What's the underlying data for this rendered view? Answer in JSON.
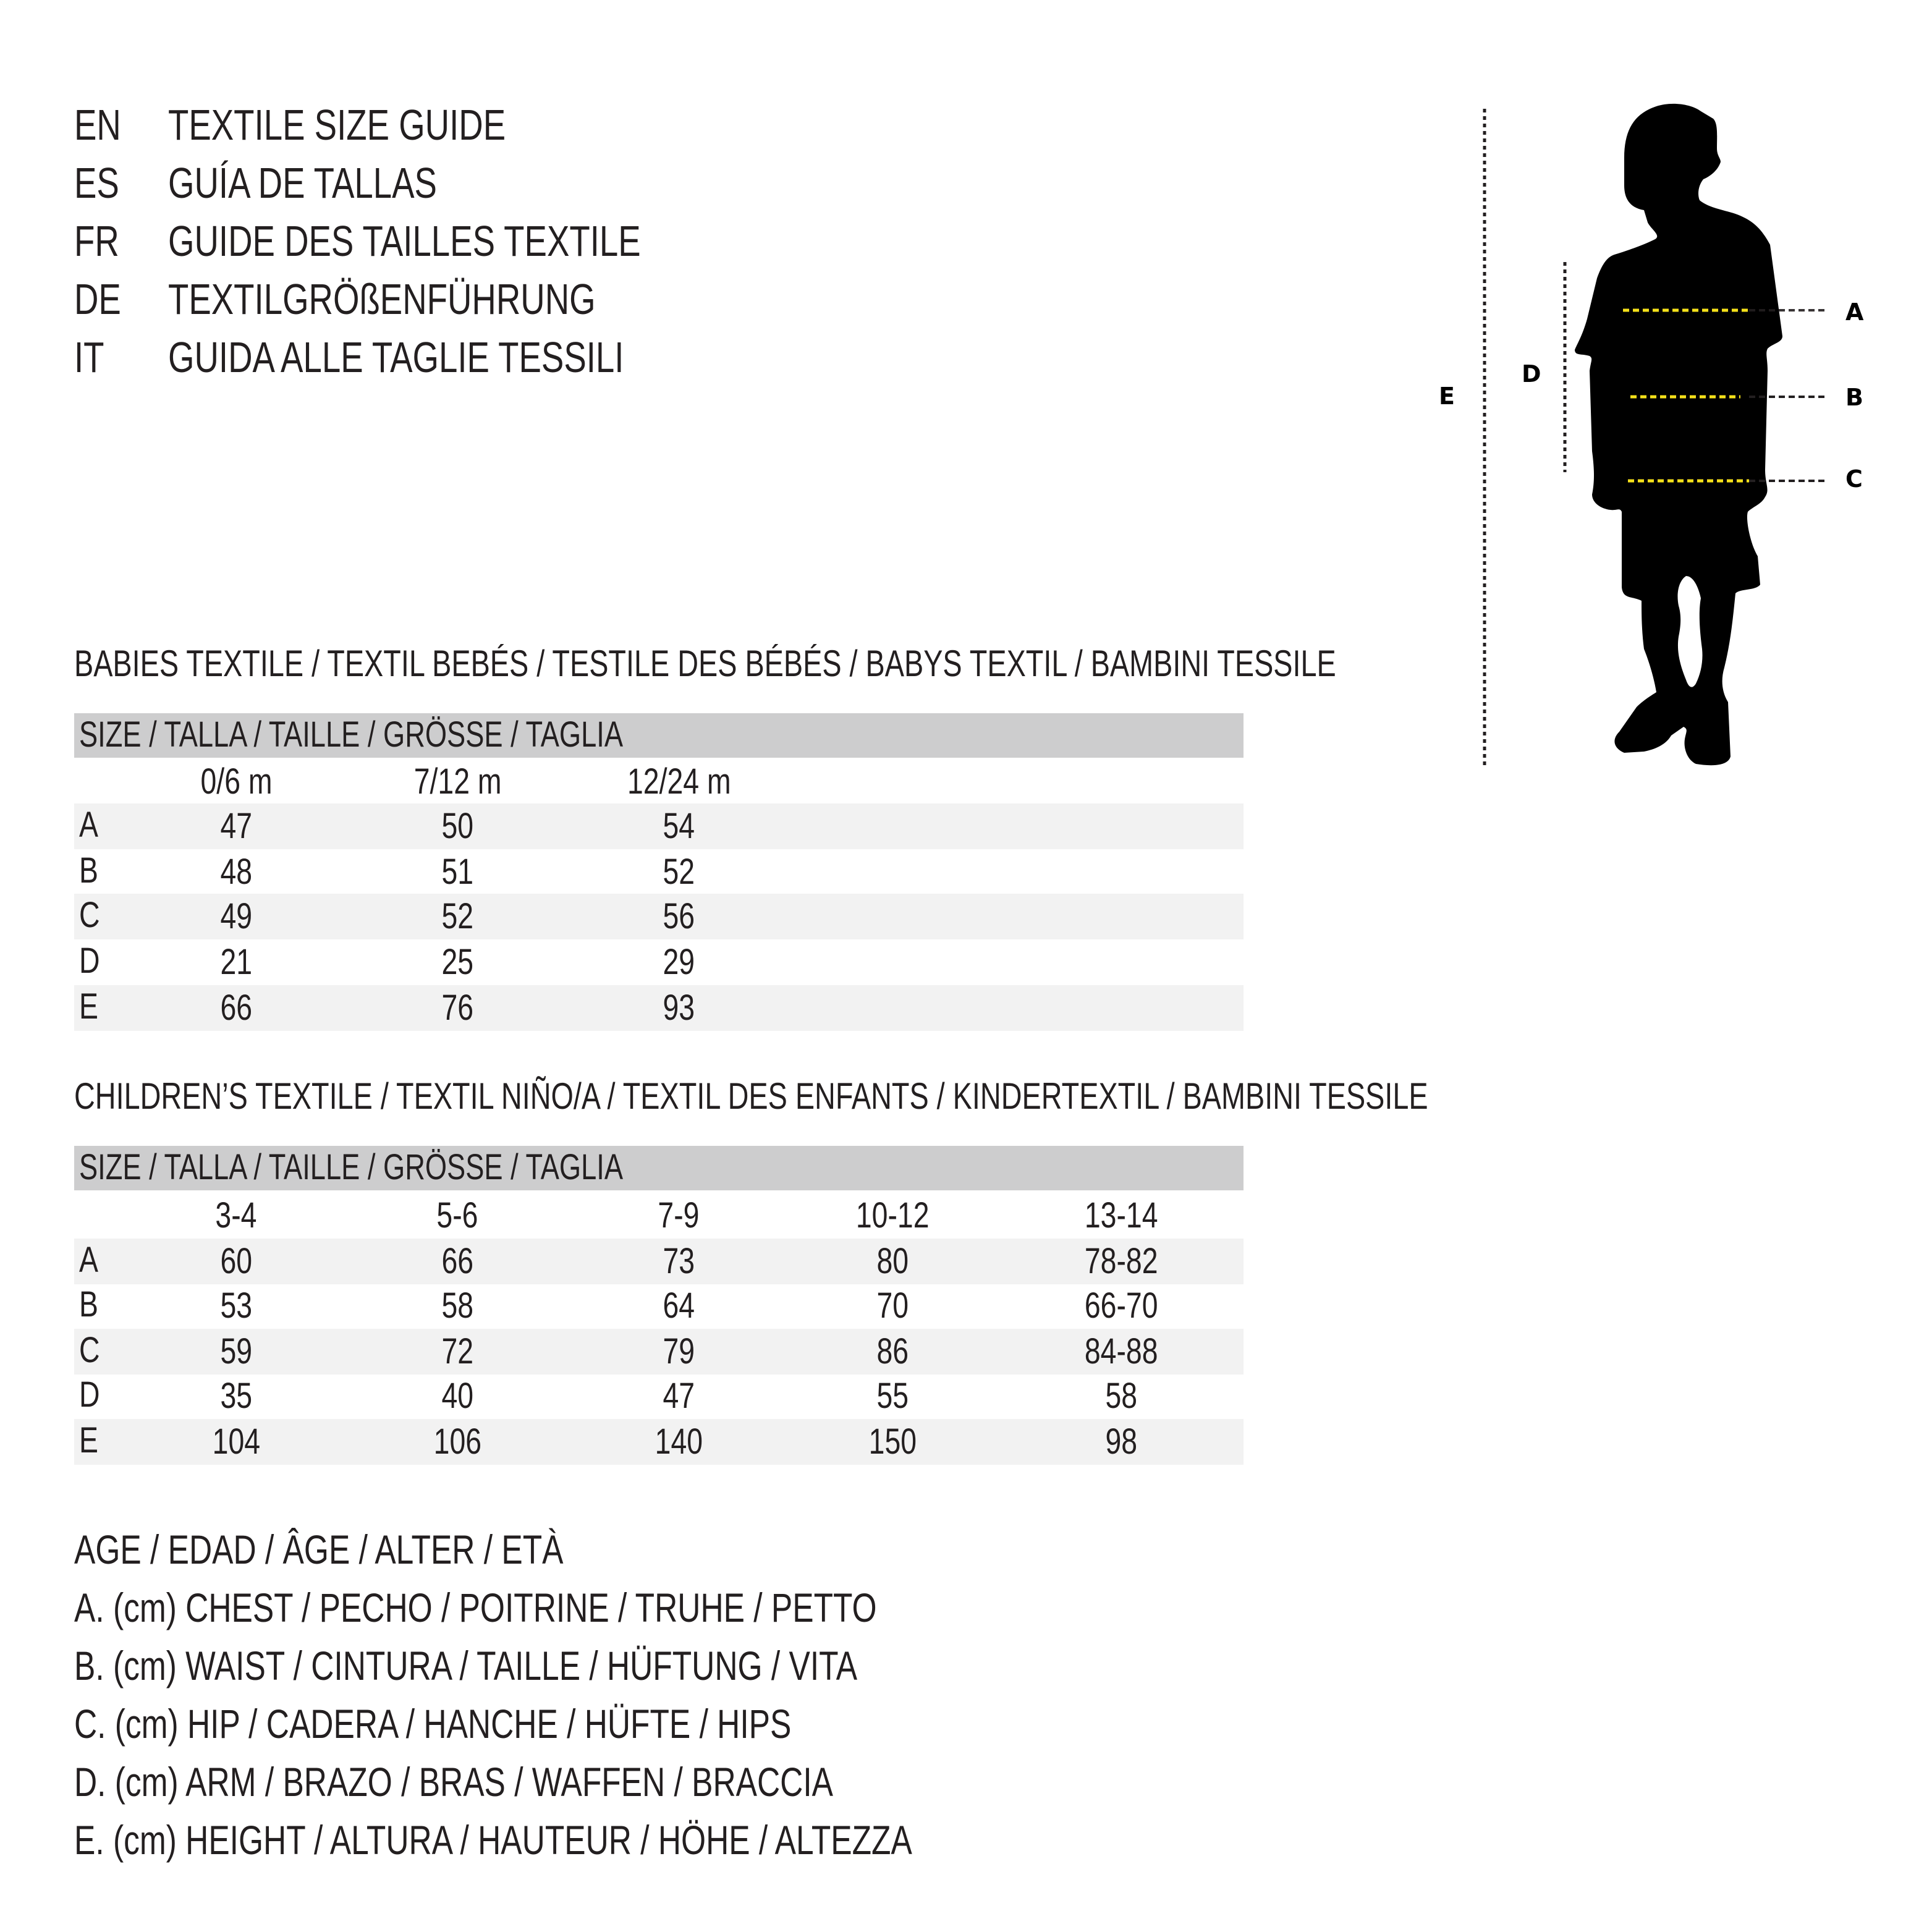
{
  "titles": [
    {
      "code": "EN",
      "text": "TEXTILE SIZE GUIDE"
    },
    {
      "code": "ES",
      "text": "GUÍA DE TALLAS"
    },
    {
      "code": "FR",
      "text": "GUIDE DES TAILLES TEXTILE"
    },
    {
      "code": "DE",
      "text": "TEXTILGRÖßENFÜHRUNG"
    },
    {
      "code": "IT",
      "text": "GUIDA ALLE TAGLIE TESSILI"
    }
  ],
  "babies": {
    "heading": "BABIES TEXTILE / TEXTIL BEBÉS / TESTILE DES BÉBÉS / BABYS TEXTIL / BAMBINI TESSILE",
    "size_label": "SIZE / TALLA / TAILLE / GRÖSSE / TAGLIA",
    "columns": [
      "0/6 m",
      "7/12 m",
      "12/24 m"
    ],
    "rows": [
      {
        "label": "A",
        "values": [
          "47",
          "50",
          "54"
        ]
      },
      {
        "label": "B",
        "values": [
          "48",
          "51",
          "52"
        ]
      },
      {
        "label": "C",
        "values": [
          "49",
          "52",
          "56"
        ]
      },
      {
        "label": "D",
        "values": [
          "21",
          "25",
          "29"
        ]
      },
      {
        "label": "E",
        "values": [
          "66",
          "76",
          "93"
        ]
      }
    ]
  },
  "children": {
    "heading": "CHILDREN’S TEXTILE / TEXTIL NIÑO/A / TEXTIL DES ENFANTS / KINDERTEXTIL / BAMBINI TESSILE",
    "size_label": "SIZE / TALLA / TAILLE / GRÖSSE / TAGLIA",
    "columns": [
      "3-4",
      "5-6",
      "7-9",
      "10-12",
      "13-14"
    ],
    "rows": [
      {
        "label": "A",
        "values": [
          "60",
          "66",
          "73",
          "80",
          "78-82"
        ]
      },
      {
        "label": "B",
        "values": [
          "53",
          "58",
          "64",
          "70",
          "66-70"
        ]
      },
      {
        "label": "C",
        "values": [
          "59",
          "72",
          "79",
          "86",
          "84-88"
        ]
      },
      {
        "label": "D",
        "values": [
          "35",
          "40",
          "47",
          "55",
          "58"
        ]
      },
      {
        "label": "E",
        "values": [
          "104",
          "106",
          "140",
          "150",
          "98"
        ]
      }
    ]
  },
  "legend": [
    "AGE / EDAD / ÂGE / ALTER / ETÀ",
    "A. (cm) CHEST / PECHO / POITRINE / TRUHE / PETTO",
    "B. (cm) WAIST / CINTURA / TAILLE / HÜFTUNG / VITA",
    "C. (cm) HIP / CADERA / HANCHE / HÜFTE / HIPS",
    "D. (cm) ARM / BRAZO / BRAS / WAFFEN / BRACCIA",
    "E. (cm) HEIGHT / ALTURA / HAUTEUR / HÖHE / ALTEZZA"
  ],
  "figure": {
    "labels": {
      "a": "A",
      "b": "B",
      "c": "C",
      "d": "D",
      "e": "E"
    },
    "icon": "child-silhouette-icon",
    "colors": {
      "silhouette": "#000000",
      "measure_line": "#f5e01a",
      "guide_line": "#231f20"
    }
  }
}
